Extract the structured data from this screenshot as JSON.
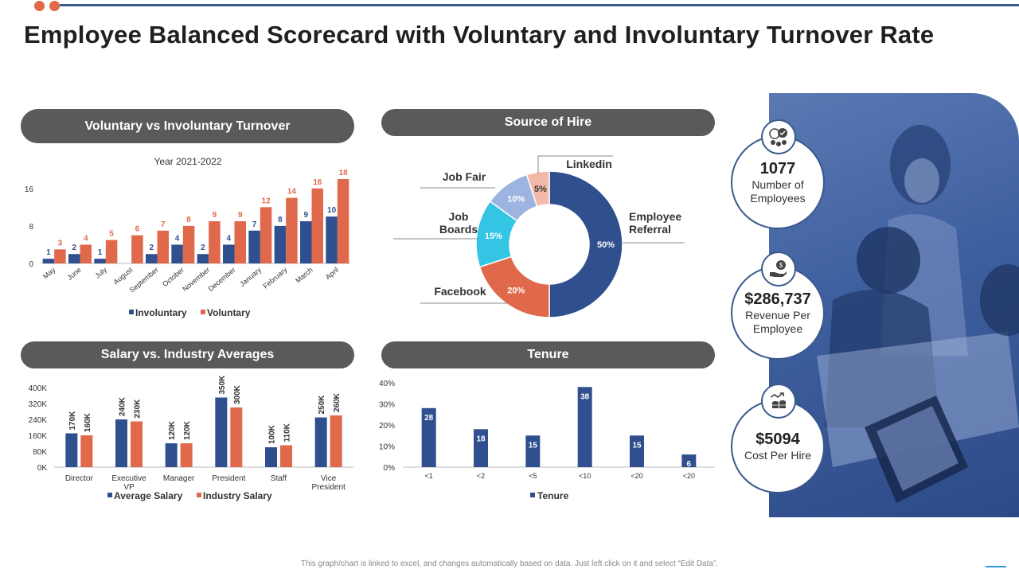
{
  "title": "Employee Balanced Scorecard with Voluntary and Involuntary Turnover Rate",
  "colors": {
    "blue": "#2f4f8f",
    "orange": "#e0694c",
    "pill": "#5a5a5a",
    "cyan": "#33c5e3",
    "lightblue": "#9db3e0",
    "pink": "#f2b8a8"
  },
  "panels": {
    "turnover": "Voluntary vs Involuntary Turnover",
    "source": "Source of Hire",
    "salary": "Salary vs. Industry Averages",
    "tenure": "Tenure"
  },
  "kpis": [
    {
      "icon": "network-people-icon",
      "value": "1077",
      "label1": "Number of",
      "label2": "Employees"
    },
    {
      "icon": "money-hand-icon",
      "value": "$286,737",
      "label1": "Revenue Per",
      "label2": "Employee"
    },
    {
      "icon": "coins-growth-icon",
      "value": "$5094",
      "label1": "Cost Per Hire",
      "label2": ""
    }
  ],
  "footer": "This graph/chart is linked to excel, and changes automatically based on data. Just left click on it and select “Edit Data”.",
  "chart_data": [
    {
      "id": "turnover",
      "type": "bar",
      "title": "Year 2021-2022",
      "categories": [
        "May",
        "June",
        "July",
        "August",
        "September",
        "October",
        "November",
        "December",
        "January",
        "February",
        "March",
        "April"
      ],
      "series": [
        {
          "name": "Involuntary",
          "color": "#2f4f8f",
          "values": [
            1,
            2,
            1,
            null,
            2,
            4,
            2,
            4,
            7,
            8,
            9,
            10
          ]
        },
        {
          "name": "Voluntary",
          "color": "#e0694c",
          "values": [
            3,
            4,
            5,
            6,
            7,
            8,
            9,
            9,
            12,
            14,
            16,
            18
          ]
        }
      ],
      "yticks": [
        "0",
        "8",
        "16"
      ],
      "ylim": [
        0,
        18
      ],
      "legend": "bottom"
    },
    {
      "id": "source",
      "type": "pie",
      "slices": [
        {
          "label": "Employee Referral",
          "value": 50,
          "text": "50%",
          "color": "#2f4f8f"
        },
        {
          "label": "Facebook",
          "value": 20,
          "text": "20%",
          "color": "#e0694c"
        },
        {
          "label": "Job Boards",
          "value": 15,
          "text": "15%",
          "color": "#33c5e3"
        },
        {
          "label": "Job Fair",
          "value": 10,
          "text": "10%",
          "color": "#9db3e0"
        },
        {
          "label": "Linkedin",
          "value": 5,
          "text": "5%",
          "color": "#f2b8a8"
        }
      ]
    },
    {
      "id": "salary",
      "type": "bar",
      "categories": [
        "Director",
        "Executive VP",
        "Manager",
        "President",
        "Staff",
        "Vice President"
      ],
      "series": [
        {
          "name": "Average Salary",
          "color": "#2f4f8f",
          "values": [
            170,
            240,
            120,
            350,
            100,
            250
          ],
          "labels": [
            "170K",
            "240K",
            "120K",
            "350K",
            "100K",
            "250K"
          ]
        },
        {
          "name": "Industry Salary",
          "color": "#e0694c",
          "values": [
            160,
            230,
            120,
            300,
            110,
            260
          ],
          "labels": [
            "160K",
            "230K",
            "120K",
            "300K",
            "110K",
            "260K"
          ]
        }
      ],
      "yticks": [
        "0K",
        "80K",
        "160K",
        "240K",
        "320K",
        "400K"
      ],
      "ylim": [
        0,
        400
      ],
      "legend": "bottom"
    },
    {
      "id": "tenure",
      "type": "bar",
      "categories": [
        "<1",
        "<2",
        "<5",
        "<10",
        "<20",
        "<20"
      ],
      "series": [
        {
          "name": "Tenure",
          "color": "#2f4f8f",
          "values": [
            28,
            18,
            15,
            38,
            15,
            6
          ]
        }
      ],
      "yticks": [
        "0%",
        "10%",
        "20%",
        "30%",
        "40%"
      ],
      "ylim": [
        0,
        40
      ],
      "legend": "bottom"
    }
  ]
}
